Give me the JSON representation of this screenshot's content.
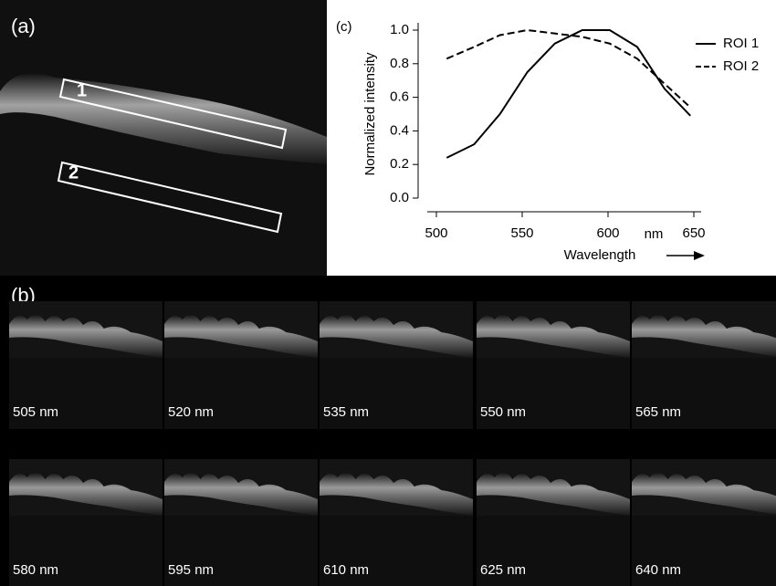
{
  "panels": {
    "a": "(a)",
    "b": "(b)",
    "c": "(c)"
  },
  "roi_labels": [
    "1",
    "2"
  ],
  "images": [
    "505 nm",
    "520 nm",
    "535 nm",
    "550 nm",
    "565 nm",
    "580 nm",
    "595 nm",
    "610 nm",
    "625 nm",
    "640 nm"
  ],
  "chart_data": {
    "type": "line",
    "xlabel": "Wavelength",
    "x_unit": "nm",
    "ylabel": "Normalized intensity",
    "x": [
      506,
      522,
      537,
      553,
      569,
      585,
      601,
      617,
      633,
      648
    ],
    "series": [
      {
        "name": "ROI 1",
        "color": "#000000",
        "linestyle": "solid",
        "values": [
          0.24,
          0.32,
          0.5,
          0.75,
          0.92,
          1.0,
          1.0,
          0.9,
          0.65,
          0.49
        ]
      },
      {
        "name": "ROI 2",
        "color": "#000000",
        "linestyle": "dashed",
        "values": [
          0.83,
          0.9,
          0.97,
          1.0,
          0.98,
          0.96,
          0.92,
          0.83,
          0.68,
          0.54
        ]
      }
    ],
    "xlim": [
      500,
      650
    ],
    "xticks": [
      500,
      550,
      600,
      650
    ],
    "ylim": [
      0,
      1.0
    ],
    "yticks": [
      {
        "value": 0,
        "label": "0.0"
      },
      0.2,
      0.4,
      0.6,
      0.8,
      {
        "value": 1,
        "label": "1.0"
      }
    ],
    "legend": "upper right"
  }
}
